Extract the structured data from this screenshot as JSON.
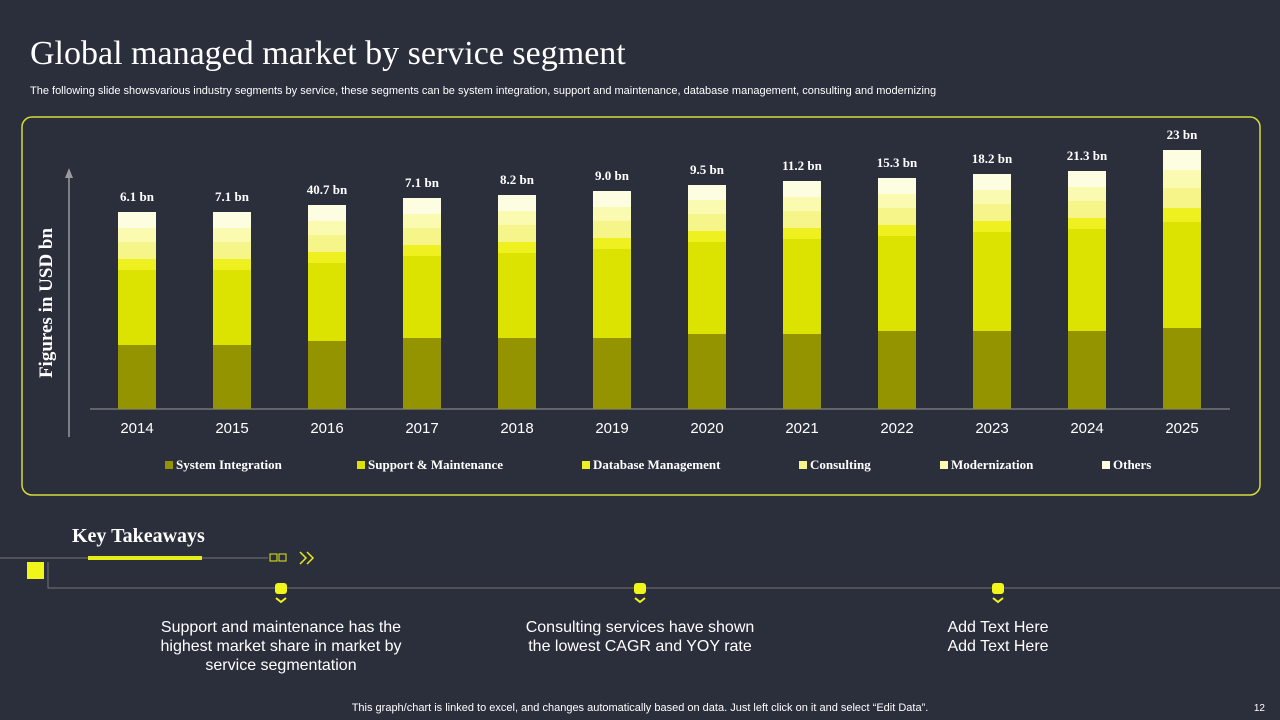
{
  "header": {
    "title": "Global managed market by service segment",
    "subtitle": "The following slide showsvarious industry segments by service, these segments can be system integration, support and maintenance, database management, consulting and modernizing"
  },
  "chart_data": {
    "type": "stacked_bar",
    "y_label": "Figures in USD bn",
    "categories": [
      "2014",
      "2015",
      "2016",
      "2017",
      "2018",
      "2019",
      "2020",
      "2021",
      "2022",
      "2023",
      "2024",
      "2025"
    ],
    "annotations": [
      "6.1 bn",
      "7.1 bn",
      "40.7 bn",
      "7.1 bn",
      "8.2 bn",
      "9.0 bn",
      "9.5 bn",
      "11.2 bn",
      "15.3 bn",
      "18.2 bn",
      "21.3 bn",
      "23 bn"
    ],
    "ylim": [
      0,
      30
    ],
    "series": [
      {
        "name": "System Integration",
        "color": "#949400",
        "values": [
          6.4,
          6.4,
          6.8,
          7.1,
          7.1,
          7.1,
          7.5,
          7.5,
          7.8,
          7.8,
          7.8,
          8.1
        ]
      },
      {
        "name": "Support & Maintenance",
        "color": "#dce300",
        "values": [
          7.5,
          7.5,
          7.8,
          8.2,
          8.5,
          8.9,
          9.2,
          9.5,
          9.5,
          9.9,
          10.2,
          10.6
        ]
      },
      {
        "name": "Database Management",
        "color": "#eef020",
        "values": [
          1.1,
          1.1,
          1.1,
          1.1,
          1.1,
          1.1,
          1.1,
          1.1,
          1.1,
          1.1,
          1.1,
          1.4
        ]
      },
      {
        "name": "Consulting",
        "color": "#f5f58a",
        "values": [
          1.7,
          1.7,
          1.7,
          1.7,
          1.7,
          1.7,
          1.7,
          1.7,
          1.7,
          1.7,
          1.7,
          2.0
        ]
      },
      {
        "name": "Modernization",
        "color": "#fafab0",
        "values": [
          1.4,
          1.4,
          1.4,
          1.4,
          1.4,
          1.4,
          1.4,
          1.4,
          1.4,
          1.4,
          1.4,
          1.8
        ]
      },
      {
        "name": "Others",
        "color": "#fdfde2",
        "values": [
          1.6,
          1.6,
          1.6,
          1.6,
          1.6,
          1.6,
          1.5,
          1.6,
          1.6,
          1.6,
          1.6,
          2.0
        ]
      }
    ]
  },
  "takeaways": {
    "heading": "Key Takeaways",
    "items": [
      {
        "lines": [
          "Support and maintenance has the",
          "highest market share in market by",
          "service segmentation"
        ]
      },
      {
        "lines": [
          "Consulting services have shown",
          "the lowest CAGR and YOY rate"
        ]
      },
      {
        "lines": [
          "Add Text Here",
          "Add Text Here"
        ]
      }
    ]
  },
  "footer": {
    "note": "This graph/chart is linked to excel,  and changes automatically based on data. Just left click on it and select “Edit Data”.",
    "page": "12"
  }
}
